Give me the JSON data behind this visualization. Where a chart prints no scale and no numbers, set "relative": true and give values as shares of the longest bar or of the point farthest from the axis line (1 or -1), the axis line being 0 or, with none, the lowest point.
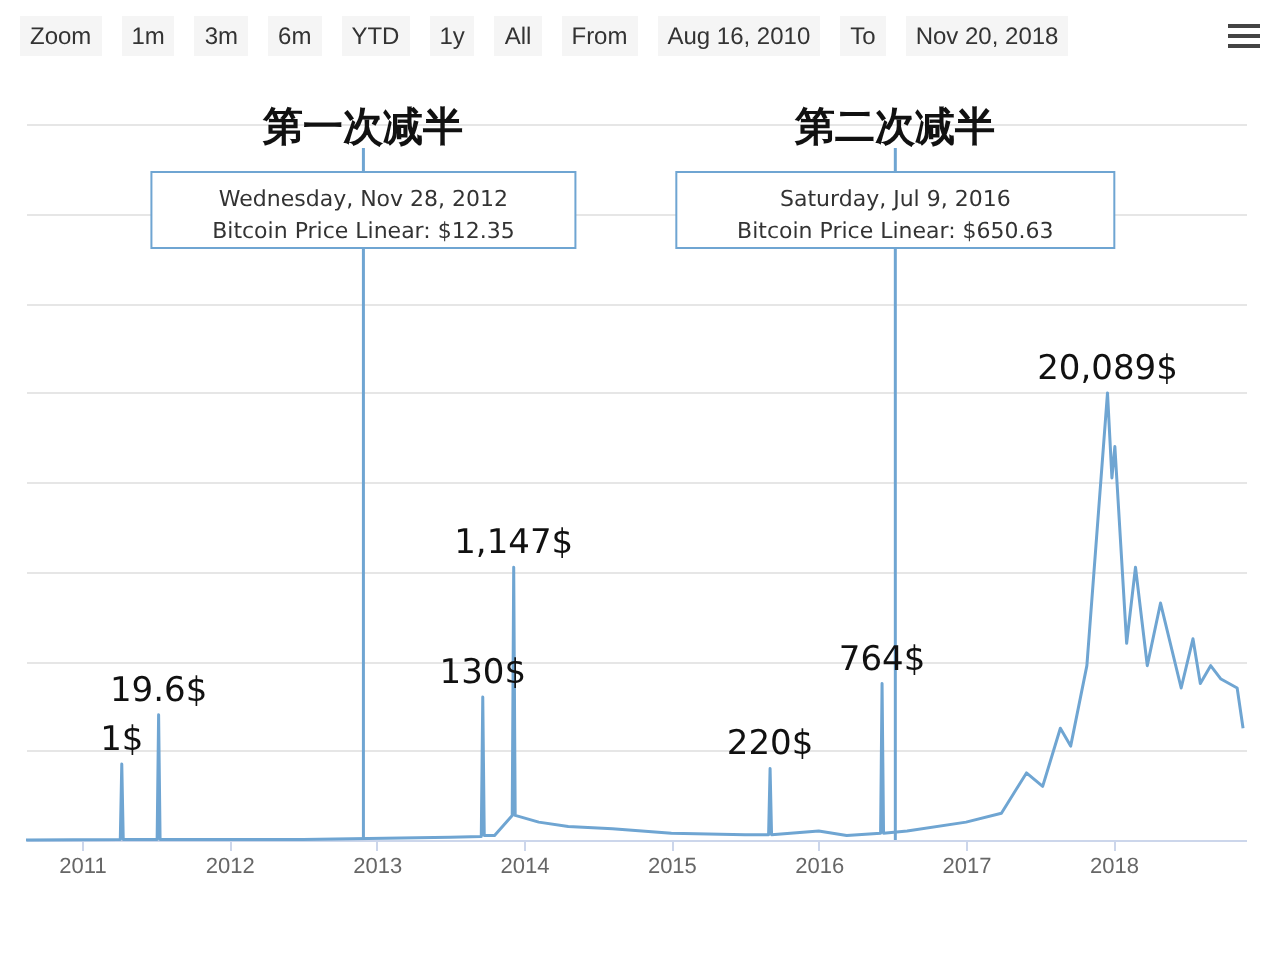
{
  "chart_data": {
    "type": "line",
    "relative": true,
    "xlim": [
      2010.62,
      2018.9
    ],
    "xticks": [
      2011,
      2012,
      2013,
      2014,
      2015,
      2016,
      2017,
      2018
    ],
    "grid": "y",
    "marker": "none",
    "series": [
      {
        "color": "#6fa5d2",
        "x": [
          2010.62,
          2011.26,
          2011.27,
          2011.28,
          2011.51,
          2011.52,
          2011.53,
          2012.5,
          2013.5,
          2013.71,
          2013.72,
          2013.73,
          2013.8,
          2013.92,
          2013.93,
          2013.94,
          2014.1,
          2014.3,
          2014.6,
          2015.0,
          2015.5,
          2015.66,
          2015.67,
          2015.68,
          2016.0,
          2016.19,
          2016.42,
          2016.43,
          2016.44,
          2016.6,
          2017.0,
          2017.24,
          2017.41,
          2017.52,
          2017.64,
          2017.71,
          2017.82,
          2017.96,
          2017.99,
          2018.01,
          2018.05,
          2018.09,
          2018.15,
          2018.23,
          2018.32,
          2018.46,
          2018.54,
          2018.59,
          2018.66,
          2018.73,
          2018.84,
          2018.88
        ],
        "values": [
          0,
          0.001,
          0.17,
          0.001,
          0.001,
          0.28,
          0.001,
          0.001,
          0.006,
          0.008,
          0.32,
          0.01,
          0.01,
          0.055,
          0.61,
          0.055,
          0.04,
          0.03,
          0.025,
          0.015,
          0.012,
          0.012,
          0.16,
          0.012,
          0.02,
          0.01,
          0.015,
          0.35,
          0.015,
          0.02,
          0.04,
          0.06,
          0.15,
          0.12,
          0.25,
          0.21,
          0.39,
          1,
          0.81,
          0.88,
          0.66,
          0.44,
          0.61,
          0.39,
          0.53,
          0.34,
          0.45,
          0.35,
          0.39,
          0.36,
          0.34,
          0.25
        ]
      }
    ],
    "ref_lines": [
      {
        "axis": "x",
        "value": 2012.91,
        "label": "第一次减半",
        "color": "#6fa5d2"
      },
      {
        "axis": "x",
        "value": 2016.52,
        "label": "第二次减半",
        "color": "#6fa5d2"
      }
    ],
    "annotations": [
      "Zoom",
      "1m",
      "3m",
      "6m",
      "YTD",
      "1y",
      "All",
      "From",
      "Aug 16, 2010",
      "To",
      "Nov 20, 2018",
      {
        "text": "1$",
        "x": 2011.27,
        "y": 0.17
      },
      {
        "text": "19.6$",
        "x": 2011.52,
        "y": 0.28
      },
      {
        "text": "130$",
        "x": 2013.72,
        "y": 0.32
      },
      {
        "text": "1,147$",
        "x": 2013.93,
        "y": 0.61
      },
      {
        "text": "220$",
        "x": 2015.67,
        "y": 0.16
      },
      {
        "text": "764$",
        "x": 2016.43,
        "y": 0.35
      },
      {
        "text": "20,089$",
        "x": 2017.96,
        "y": 1
      },
      "Wednesday, Nov 28, 2012",
      "Bitcoin Price Linear: $12.35",
      "Saturday, Jul 9, 2016",
      "Bitcoin Price Linear: $650.63"
    ]
  }
}
